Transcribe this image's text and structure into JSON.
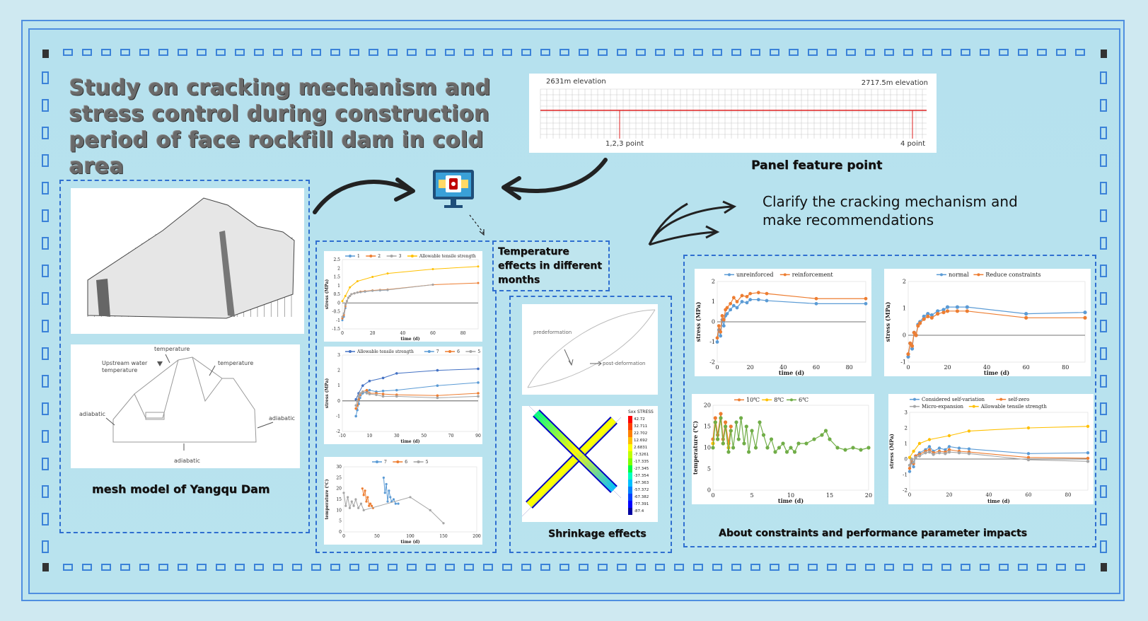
{
  "title": "Study on cracking mechanism and stress control during construction period of face rockfill dam in cold area",
  "panel": {
    "left_elev": "2631m elevation",
    "right_elev": "2717.5m elevation",
    "point_left": "1,2,3 point",
    "point_right": "4 point",
    "caption": "Panel feature point"
  },
  "mesh_caption": "mesh model of Yangqu Dam",
  "boundary": {
    "temp_top": "temperature",
    "upstream": "Upstream water temperature",
    "temp_right": "temperature",
    "adiabatic_left": "adiabatic",
    "adiabatic_right": "adiabatic",
    "adiabatic_bottom": "adiabatic"
  },
  "temp_caption": "Temperature effects  in different months",
  "shrink_caption": "Shrinkage effects",
  "shrink": {
    "pre": "predeformation",
    "post": "post-deformation",
    "legend_title": "Sxx STRESS",
    "legend_values": [
      "42.72",
      "32.711",
      "22.702",
      "12.692",
      "2.6831",
      "-7.3261",
      "-17.335",
      "-27.345",
      "-37.354",
      "-47.363",
      "-57.372",
      "-67.382",
      "-77.391",
      "-87.4"
    ]
  },
  "clarify": "Clarify the cracking mechanism and make recommendations",
  "constraints_caption": "About constraints and performance parameter impacts",
  "colors": {
    "blue": "#5b9bd5",
    "orange": "#ed7d31",
    "gray": "#a5a5a5",
    "yellow": "#ffc000",
    "green": "#70ad47",
    "darkblue": "#4472c4"
  },
  "chart_data": [
    {
      "type": "line",
      "id": "c1",
      "xlabel": "time (d)",
      "ylabel": "stress (MPa)",
      "xlim": [
        0,
        90
      ],
      "ylim": [
        -1.5,
        2.5
      ],
      "xticks": [
        0,
        20,
        40,
        60,
        80
      ],
      "yticks": [
        -1.5,
        -1,
        -0.5,
        0,
        0.5,
        1,
        1.5,
        2,
        2.5
      ],
      "series": [
        {
          "name": "1",
          "color": "#5b9bd5",
          "x": [
            0,
            1,
            2,
            3,
            4,
            5,
            6,
            8,
            10,
            12,
            15,
            20,
            25,
            30
          ],
          "y": [
            -1.0,
            -0.8,
            -0.3,
            0.1,
            0.3,
            0.4,
            0.5,
            0.55,
            0.6,
            0.62,
            0.65,
            0.7,
            0.72,
            0.74
          ]
        },
        {
          "name": "2",
          "color": "#ed7d31",
          "x": [
            0,
            1,
            2,
            3,
            4,
            5,
            6,
            8,
            10,
            12,
            15,
            20,
            25,
            30,
            60,
            90
          ],
          "y": [
            -0.9,
            -0.7,
            -0.2,
            0.1,
            0.3,
            0.4,
            0.5,
            0.55,
            0.6,
            0.65,
            0.68,
            0.72,
            0.75,
            0.77,
            1.05,
            1.15
          ]
        },
        {
          "name": "3",
          "color": "#a5a5a5",
          "x": [
            0,
            1,
            2,
            3,
            4,
            5,
            6,
            8,
            10,
            12,
            15,
            20,
            25,
            30,
            60
          ],
          "y": [
            -0.8,
            -0.6,
            -0.1,
            0.1,
            0.3,
            0.4,
            0.5,
            0.55,
            0.6,
            0.62,
            0.66,
            0.7,
            0.73,
            0.75,
            1.05
          ]
        },
        {
          "name": "Allowable tensile strength",
          "color": "#ffc000",
          "x": [
            0,
            2,
            5,
            10,
            20,
            30,
            60,
            90
          ],
          "y": [
            0.1,
            0.4,
            0.9,
            1.25,
            1.5,
            1.7,
            1.95,
            2.1
          ]
        }
      ]
    },
    {
      "type": "line",
      "id": "c2",
      "xlabel": "time (d)",
      "ylabel": "stress (MPa)",
      "xlim": [
        -10,
        90
      ],
      "ylim": [
        -2,
        3
      ],
      "xticks": [
        -10,
        10,
        30,
        50,
        70,
        90
      ],
      "yticks": [
        -2,
        -1,
        0,
        1,
        2,
        3
      ],
      "series": [
        {
          "name": "Allowable tensile strength",
          "color": "#4472c4",
          "x": [
            0,
            2,
            5,
            10,
            20,
            30,
            60,
            90
          ],
          "y": [
            0.1,
            0.5,
            1.0,
            1.3,
            1.5,
            1.8,
            2.0,
            2.1
          ]
        },
        {
          "name": "7",
          "color": "#5b9bd5",
          "x": [
            0,
            1,
            2,
            3,
            5,
            8,
            10,
            15,
            20,
            30,
            60,
            90
          ],
          "y": [
            -1.0,
            -0.6,
            -0.2,
            0.2,
            0.5,
            0.6,
            0.7,
            0.6,
            0.65,
            0.7,
            1.0,
            1.2
          ]
        },
        {
          "name": "6",
          "color": "#ed7d31",
          "x": [
            0,
            1,
            2,
            3,
            5,
            8,
            10,
            15,
            20,
            30,
            60,
            90
          ],
          "y": [
            -0.5,
            -0.3,
            0.1,
            0.4,
            0.6,
            0.7,
            0.5,
            0.5,
            0.45,
            0.4,
            0.35,
            0.5
          ]
        },
        {
          "name": "5",
          "color": "#a5a5a5",
          "x": [
            0,
            1,
            2,
            3,
            5,
            8,
            10,
            15,
            20,
            30,
            60,
            90
          ],
          "y": [
            -0.3,
            0,
            0.3,
            0.5,
            0.6,
            0.5,
            0.45,
            0.4,
            0.3,
            0.3,
            0.2,
            0.3
          ]
        }
      ]
    },
    {
      "type": "line",
      "id": "c3",
      "xlabel": "time (d)",
      "ylabel": "temperature (℃)",
      "xlim": [
        0,
        200
      ],
      "ylim": [
        0,
        30
      ],
      "xticks": [
        0,
        50,
        100,
        150,
        200
      ],
      "yticks": [
        0,
        5,
        10,
        15,
        20,
        25,
        30
      ],
      "series": [
        {
          "name": "7",
          "color": "#5b9bd5",
          "x": [
            60,
            62,
            64,
            66,
            68,
            70,
            72,
            75,
            78,
            82
          ],
          "y": [
            25,
            18,
            22,
            14,
            19,
            16,
            14,
            15,
            13,
            13
          ]
        },
        {
          "name": "6",
          "color": "#ed7d31",
          "x": [
            28,
            30,
            32,
            34,
            36,
            38,
            40,
            42,
            44
          ],
          "y": [
            20,
            17,
            19,
            14,
            16,
            12,
            13,
            12,
            11
          ]
        },
        {
          "name": "5",
          "color": "#a5a5a5",
          "x": [
            0,
            3,
            6,
            9,
            12,
            15,
            18,
            22,
            26,
            30,
            100,
            130,
            150
          ],
          "y": [
            18,
            12,
            16,
            11,
            14,
            12,
            15,
            11,
            13,
            10,
            16,
            10,
            4
          ]
        }
      ]
    },
    {
      "type": "line",
      "id": "c4",
      "xlabel": "time (d)",
      "ylabel": "stress (MPa)",
      "xlim": [
        0,
        90
      ],
      "ylim": [
        -2,
        2
      ],
      "xticks": [
        0,
        20,
        40,
        60,
        80
      ],
      "yticks": [
        -2,
        -1,
        0,
        1,
        2
      ],
      "series": [
        {
          "name": "unreinforced",
          "color": "#5b9bd5",
          "x": [
            0,
            1,
            2,
            3,
            4,
            5,
            6,
            8,
            10,
            12,
            15,
            18,
            20,
            25,
            30,
            60,
            90
          ],
          "y": [
            -1.0,
            -0.4,
            -0.7,
            0.1,
            -0.2,
            0.3,
            0.4,
            0.6,
            0.8,
            0.7,
            1.0,
            0.95,
            1.1,
            1.1,
            1.05,
            0.9,
            0.9
          ]
        },
        {
          "name": "reinforcement",
          "color": "#ed7d31",
          "x": [
            0,
            1,
            2,
            3,
            4,
            5,
            6,
            8,
            10,
            12,
            15,
            18,
            20,
            25,
            30,
            60,
            90
          ],
          "y": [
            -0.8,
            -0.2,
            -0.5,
            0.3,
            0.1,
            0.6,
            0.7,
            0.9,
            1.2,
            1.0,
            1.3,
            1.25,
            1.4,
            1.45,
            1.4,
            1.15,
            1.15
          ]
        }
      ]
    },
    {
      "type": "line",
      "id": "c5",
      "xlabel": "time (d)",
      "ylabel": "stress (MPa)",
      "xlim": [
        0,
        90
      ],
      "ylim": [
        -1,
        2
      ],
      "xticks": [
        0,
        20,
        40,
        60,
        80
      ],
      "yticks": [
        -1,
        0,
        1,
        2
      ],
      "series": [
        {
          "name": "normal",
          "color": "#5b9bd5",
          "x": [
            0,
            1,
            2,
            3,
            4,
            5,
            6,
            8,
            10,
            12,
            15,
            18,
            20,
            25,
            30,
            60,
            90
          ],
          "y": [
            -0.8,
            -0.3,
            -0.5,
            0.1,
            0,
            0.4,
            0.5,
            0.7,
            0.8,
            0.75,
            0.9,
            0.95,
            1.05,
            1.05,
            1.05,
            0.8,
            0.85
          ]
        },
        {
          "name": "Reduce constraints",
          "color": "#ed7d31",
          "x": [
            0,
            1,
            2,
            3,
            4,
            5,
            6,
            8,
            10,
            12,
            15,
            18,
            20,
            25,
            30,
            60,
            90
          ],
          "y": [
            -0.7,
            -0.3,
            -0.4,
            0.1,
            0,
            0.35,
            0.45,
            0.6,
            0.7,
            0.65,
            0.8,
            0.85,
            0.9,
            0.9,
            0.9,
            0.65,
            0.65
          ]
        }
      ]
    },
    {
      "type": "line",
      "id": "c6",
      "xlabel": "time (d)",
      "ylabel": "temperature (℃)",
      "xlim": [
        0,
        20
      ],
      "ylim": [
        0,
        20
      ],
      "xticks": [
        0,
        5,
        10,
        15,
        20
      ],
      "yticks": [
        0,
        5,
        10,
        15,
        20
      ],
      "series": [
        {
          "name": "10℃",
          "color": "#ed7d31",
          "x": [
            0,
            0.3,
            0.6,
            1,
            1.3,
            1.6,
            2,
            2.3
          ],
          "y": [
            12,
            17,
            13,
            18,
            12,
            16,
            11,
            15
          ]
        },
        {
          "name": "8℃",
          "color": "#ffc000",
          "x": [
            0,
            0.3,
            0.6,
            1,
            1.3,
            1.6,
            2,
            2.3
          ],
          "y": [
            11,
            16,
            12,
            17,
            11,
            15,
            10,
            14
          ]
        },
        {
          "name": "6℃",
          "color": "#70ad47",
          "x": [
            0,
            0.3,
            0.6,
            1,
            1.3,
            1.6,
            2,
            2.3,
            2.6,
            3,
            3.3,
            3.6,
            4,
            4.3,
            4.6,
            5,
            5.5,
            6,
            6.5,
            7,
            7.5,
            8,
            8.5,
            9,
            9.5,
            10,
            10.5,
            11,
            12,
            13,
            14,
            14.5,
            15,
            16,
            17,
            18,
            19,
            20
          ],
          "y": [
            10,
            16,
            12,
            17,
            11,
            15,
            9,
            14,
            10,
            16,
            12,
            17,
            11,
            15,
            9,
            14,
            10,
            16,
            13,
            10,
            12,
            9,
            10,
            11,
            9,
            10,
            9,
            11,
            11,
            12,
            13,
            14,
            12,
            10,
            9.5,
            10,
            9.5,
            10
          ]
        }
      ]
    },
    {
      "type": "line",
      "id": "c7",
      "xlabel": "time (d)",
      "ylabel": "stress (MPa)",
      "xlim": [
        0,
        90
      ],
      "ylim": [
        -2,
        3
      ],
      "xticks": [
        0,
        20,
        40,
        60,
        80
      ],
      "yticks": [
        -2,
        -1,
        0,
        1,
        2,
        3
      ],
      "series": [
        {
          "name": "Considered self-variation",
          "color": "#5b9bd5",
          "x": [
            0,
            1,
            2,
            3,
            5,
            8,
            10,
            12,
            15,
            18,
            20,
            25,
            30,
            60,
            90
          ],
          "y": [
            -0.8,
            -0.2,
            -0.5,
            0.2,
            0.4,
            0.6,
            0.8,
            0.5,
            0.7,
            0.6,
            0.8,
            0.7,
            0.65,
            0.35,
            0.4
          ]
        },
        {
          "name": "self-zero",
          "color": "#ed7d31",
          "x": [
            0,
            1,
            2,
            3,
            5,
            8,
            10,
            12,
            15,
            18,
            20,
            25,
            30,
            60,
            90
          ],
          "y": [
            -0.6,
            -0.1,
            -0.3,
            0.2,
            0.3,
            0.5,
            0.6,
            0.4,
            0.5,
            0.45,
            0.6,
            0.5,
            0.45,
            0.1,
            0.05
          ]
        },
        {
          "name": "Micro-expansion",
          "color": "#a5a5a5",
          "x": [
            0,
            1,
            2,
            3,
            5,
            8,
            10,
            12,
            15,
            18,
            20,
            25,
            30,
            60,
            90
          ],
          "y": [
            -0.4,
            0,
            -0.2,
            0.1,
            0.2,
            0.4,
            0.45,
            0.3,
            0.4,
            0.35,
            0.45,
            0.4,
            0.35,
            -0.05,
            -0.15
          ]
        },
        {
          "name": "Allowable tensile strength",
          "color": "#ffc000",
          "x": [
            0,
            2,
            5,
            10,
            20,
            30,
            60,
            90
          ],
          "y": [
            0.1,
            0.5,
            1.0,
            1.25,
            1.5,
            1.8,
            2.0,
            2.1
          ]
        }
      ]
    }
  ]
}
